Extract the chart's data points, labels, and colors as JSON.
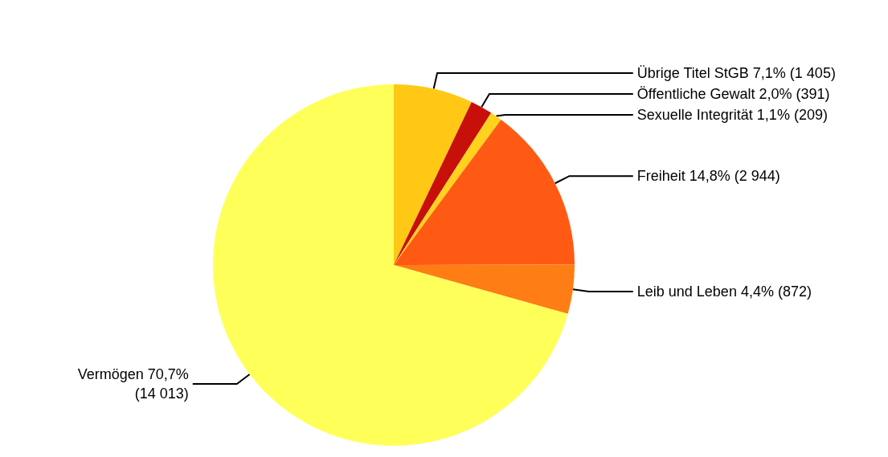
{
  "chart_data": {
    "type": "pie",
    "categories": [
      "Übrige Titel StGB",
      "Öffentliche Gewalt",
      "Sexuelle Integrität",
      "Freiheit",
      "Leib und Leben",
      "Vermögen"
    ],
    "values": [
      1405,
      391,
      209,
      2944,
      872,
      14013
    ],
    "value_labels": [
      "7,1% (1 405)",
      "2,0% (391)",
      "1,1% (209)",
      "14,8% (2 944)",
      "4,4% (872)",
      "70,7% (14 013)"
    ],
    "colors": [
      "#ffc814",
      "#c8100a",
      "#ffd21e",
      "#ff5a14",
      "#ff7d14",
      "#ffff5a"
    ],
    "legend": false
  }
}
